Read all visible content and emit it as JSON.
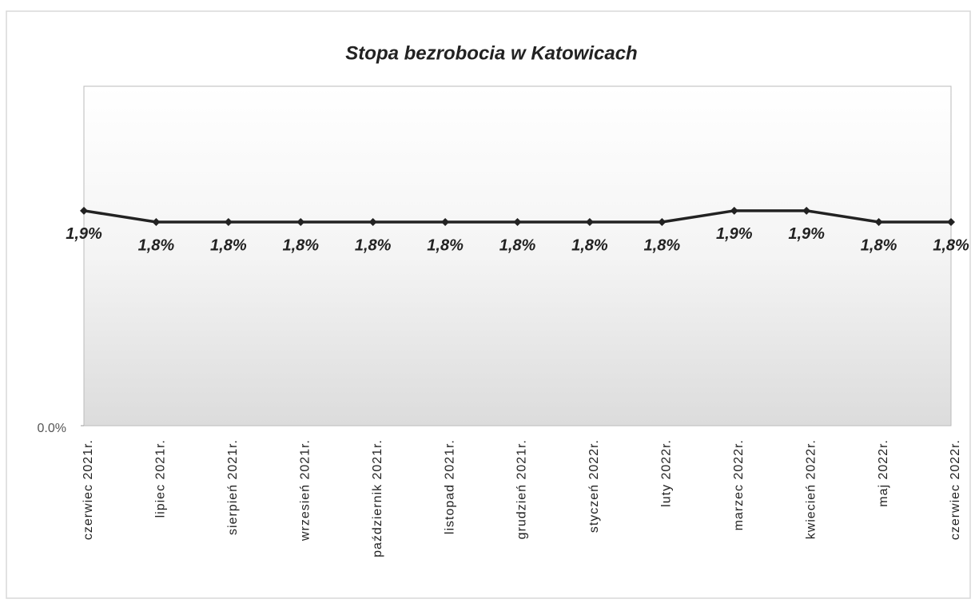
{
  "chart_data": {
    "type": "line",
    "title": "Stopa bezrobocia w Katowicach",
    "categories": [
      "czerwiec 2021r.",
      "lipiec 2021r.",
      "sierpień 2021r.",
      "wrzesień 2021r.",
      "październik 2021r.",
      "listopad 2021r.",
      "grudzień 2021r.",
      "styczeń 2022r.",
      "luty 2022r.",
      "marzec 2022r.",
      "kwiecień 2022r.",
      "maj 2022r.",
      "czerwiec 2022r."
    ],
    "values": [
      1.9,
      1.8,
      1.8,
      1.8,
      1.8,
      1.8,
      1.8,
      1.8,
      1.8,
      1.9,
      1.9,
      1.8,
      1.8
    ],
    "value_labels": [
      "1,9%",
      "1,8%",
      "1,8%",
      "1,8%",
      "1,8%",
      "1,8%",
      "1,8%",
      "1,8%",
      "1,8%",
      "1,9%",
      "1,9%",
      "1,8%",
      "1,8%"
    ],
    "color": "#222222",
    "ylim": [
      0,
      3
    ],
    "yticks": [
      {
        "value": 0,
        "label": "0.0%"
      }
    ]
  }
}
